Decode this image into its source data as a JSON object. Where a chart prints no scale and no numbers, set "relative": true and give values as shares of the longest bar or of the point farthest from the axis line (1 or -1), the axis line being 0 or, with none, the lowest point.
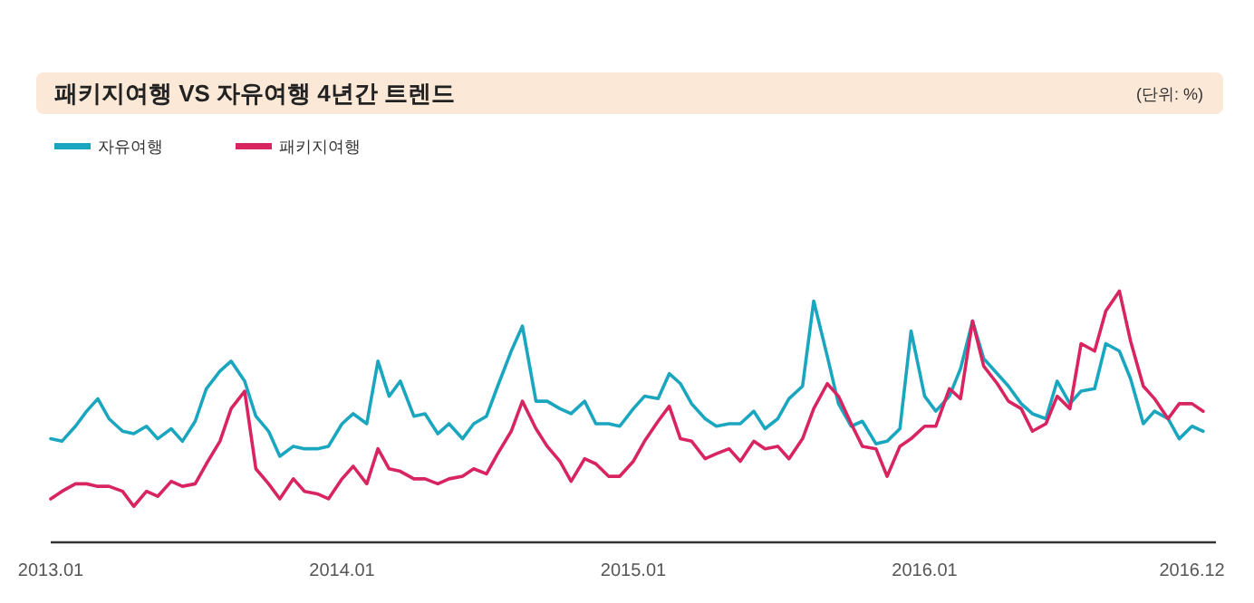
{
  "chart_data": {
    "type": "line",
    "title": "패키지여행 VS 자유여행 4년간 트렌드",
    "annotations": [
      "(단위: %)"
    ],
    "relative": true,
    "legend": "top left",
    "tick_labels": "x",
    "line_style": "solid",
    "xlim": [
      "2013-01-01",
      "2016-12-31"
    ],
    "xticks": [
      {
        "value": "2013-01-01",
        "label": "2013.01"
      },
      {
        "value": "2014-01-01",
        "label": "2014.01"
      },
      {
        "value": "2015-01-01",
        "label": "2015.01"
      },
      {
        "value": "2016-01-01",
        "label": "2016.01"
      },
      {
        "value": "2016-12-01",
        "label": "2016.12"
      }
    ],
    "x": [
      "2013-01-01",
      "2013-01-15",
      "2013-02-01",
      "2013-02-15",
      "2013-03-01",
      "2013-03-15",
      "2013-04-01",
      "2013-04-15",
      "2013-05-01",
      "2013-05-15",
      "2013-06-01",
      "2013-06-15",
      "2013-07-01",
      "2013-07-15",
      "2013-08-01",
      "2013-08-15",
      "2013-09-01",
      "2013-09-15",
      "2013-10-01",
      "2013-10-15",
      "2013-11-01",
      "2013-11-15",
      "2013-12-01",
      "2013-12-15",
      "2014-01-01",
      "2014-01-15",
      "2014-02-01",
      "2014-02-15",
      "2014-03-01",
      "2014-03-15",
      "2014-04-01",
      "2014-04-15",
      "2014-05-01",
      "2014-05-15",
      "2014-06-01",
      "2014-06-15",
      "2014-07-01",
      "2014-07-15",
      "2014-08-01",
      "2014-08-15",
      "2014-09-01",
      "2014-09-15",
      "2014-10-01",
      "2014-10-15",
      "2014-11-01",
      "2014-11-15",
      "2014-12-01",
      "2014-12-15",
      "2015-01-01",
      "2015-01-15",
      "2015-02-01",
      "2015-02-15",
      "2015-03-01",
      "2015-03-15",
      "2015-04-01",
      "2015-04-15",
      "2015-05-01",
      "2015-05-15",
      "2015-06-01",
      "2015-06-15",
      "2015-07-01",
      "2015-07-15",
      "2015-08-01",
      "2015-08-15",
      "2015-09-01",
      "2015-09-15",
      "2015-10-01",
      "2015-10-15",
      "2015-11-01",
      "2015-11-15",
      "2015-12-01",
      "2015-12-15",
      "2016-01-01",
      "2016-01-15",
      "2016-02-01",
      "2016-02-15",
      "2016-03-01",
      "2016-03-15",
      "2016-04-01",
      "2016-04-15",
      "2016-05-01",
      "2016-05-15",
      "2016-06-01",
      "2016-06-15",
      "2016-07-01",
      "2016-07-15",
      "2016-08-01",
      "2016-08-15",
      "2016-09-01",
      "2016-09-15",
      "2016-10-01",
      "2016-10-15",
      "2016-11-01",
      "2016-11-15",
      "2016-12-01",
      "2016-12-15"
    ],
    "series": [
      {
        "name": "자유여행",
        "color": "#1ba6c0",
        "values": [
          0.41,
          0.4,
          0.46,
          0.52,
          0.57,
          0.49,
          0.44,
          0.43,
          0.46,
          0.41,
          0.45,
          0.4,
          0.48,
          0.61,
          0.68,
          0.72,
          0.64,
          0.5,
          0.44,
          0.34,
          0.38,
          0.37,
          0.37,
          0.38,
          0.47,
          0.51,
          0.47,
          0.72,
          0.58,
          0.64,
          0.5,
          0.51,
          0.43,
          0.47,
          0.41,
          0.47,
          0.5,
          0.62,
          0.76,
          0.86,
          0.56,
          0.56,
          0.53,
          0.51,
          0.56,
          0.47,
          0.47,
          0.46,
          0.53,
          0.58,
          0.57,
          0.67,
          0.63,
          0.55,
          0.49,
          0.46,
          0.47,
          0.47,
          0.52,
          0.45,
          0.49,
          0.57,
          0.62,
          0.96,
          0.74,
          0.55,
          0.46,
          0.48,
          0.39,
          0.4,
          0.45,
          0.84,
          0.58,
          0.52,
          0.58,
          0.69,
          0.88,
          0.73,
          0.67,
          0.62,
          0.55,
          0.51,
          0.49,
          0.64,
          0.55,
          0.6,
          0.61,
          0.79,
          0.76,
          0.65,
          0.47,
          0.52,
          0.49,
          0.41,
          0.46,
          0.44
        ]
      },
      {
        "name": "패키지여행",
        "color": "#d8245f",
        "values": [
          0.17,
          0.2,
          0.23,
          0.23,
          0.22,
          0.22,
          0.2,
          0.14,
          0.2,
          0.18,
          0.24,
          0.22,
          0.23,
          0.31,
          0.4,
          0.53,
          0.6,
          0.29,
          0.23,
          0.17,
          0.25,
          0.2,
          0.19,
          0.17,
          0.25,
          0.3,
          0.23,
          0.37,
          0.29,
          0.28,
          0.25,
          0.25,
          0.23,
          0.25,
          0.26,
          0.29,
          0.27,
          0.35,
          0.44,
          0.56,
          0.45,
          0.38,
          0.32,
          0.24,
          0.33,
          0.31,
          0.26,
          0.26,
          0.32,
          0.4,
          0.48,
          0.54,
          0.41,
          0.4,
          0.33,
          0.35,
          0.37,
          0.32,
          0.4,
          0.37,
          0.38,
          0.33,
          0.41,
          0.53,
          0.63,
          0.58,
          0.47,
          0.38,
          0.37,
          0.26,
          0.38,
          0.41,
          0.46,
          0.46,
          0.61,
          0.57,
          0.88,
          0.7,
          0.63,
          0.56,
          0.53,
          0.44,
          0.47,
          0.58,
          0.53,
          0.79,
          0.76,
          0.92,
          1.0,
          0.8,
          0.62,
          0.57,
          0.49,
          0.55,
          0.55,
          0.52
        ]
      }
    ]
  }
}
